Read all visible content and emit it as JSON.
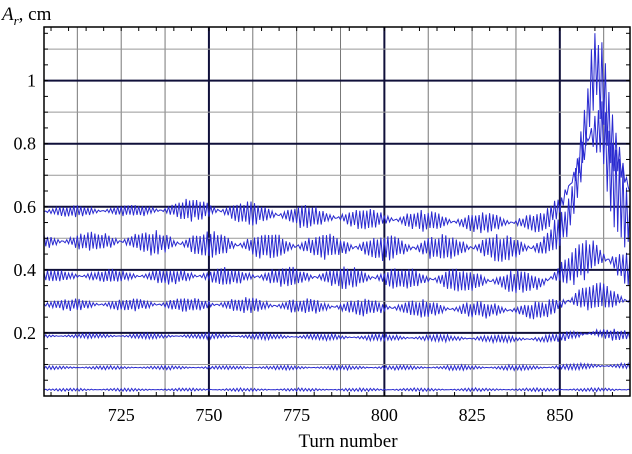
{
  "chart_data": {
    "type": "line",
    "xlabel": "Turn number",
    "ylabel_symbol": "A",
    "ylabel_subscript": "r",
    "ylabel_unit": ", cm",
    "xlim": [
      703,
      870
    ],
    "ylim": [
      0.0,
      1.17
    ],
    "x_ticks": [
      725,
      750,
      775,
      800,
      825,
      850
    ],
    "y_ticks": [
      0.2,
      0.4,
      0.6,
      0.8,
      1
    ],
    "x_tick_labels": [
      "725",
      "750",
      "775",
      "800",
      "825",
      "850"
    ],
    "y_tick_labels": [
      "0.2",
      "0.4",
      "0.6",
      "0.8",
      "1"
    ],
    "grid": true,
    "colors": {
      "series": "#2a2ad0",
      "grid": "#1a1a1a",
      "axis": "#000000"
    },
    "series": [
      {
        "values": [
          [
            703,
            0.585
          ],
          [
            750,
            0.59
          ],
          [
            775,
            0.57
          ],
          [
            800,
            0.56
          ],
          [
            825,
            0.55
          ],
          [
            845,
            0.55
          ],
          [
            850,
            0.6
          ],
          [
            855,
            0.72
          ],
          [
            858,
            0.9
          ],
          [
            860,
            1.05
          ],
          [
            862,
            1.0
          ],
          [
            865,
            0.8
          ],
          [
            870,
            0.65
          ]
        ],
        "amplitude": [
          [
            703,
            0.02
          ],
          [
            730,
            0.02
          ],
          [
            740,
            0.035
          ],
          [
            748,
            0.04
          ],
          [
            775,
            0.04
          ],
          [
            800,
            0.035
          ],
          [
            845,
            0.035
          ],
          [
            850,
            0.05
          ],
          [
            858,
            0.15
          ],
          [
            870,
            0.1
          ]
        ]
      },
      {
        "values": [
          [
            703,
            0.49
          ],
          [
            725,
            0.49
          ],
          [
            750,
            0.48
          ],
          [
            800,
            0.47
          ],
          [
            845,
            0.47
          ],
          [
            852,
            0.55
          ],
          [
            858,
            0.82
          ],
          [
            862,
            0.85
          ],
          [
            866,
            0.65
          ],
          [
            870,
            0.55
          ]
        ],
        "amplitude": [
          [
            703,
            0.03
          ],
          [
            740,
            0.045
          ],
          [
            800,
            0.045
          ],
          [
            845,
            0.045
          ],
          [
            852,
            0.06
          ],
          [
            858,
            0.2
          ],
          [
            870,
            0.12
          ]
        ]
      },
      {
        "values": [
          [
            703,
            0.38
          ],
          [
            750,
            0.38
          ],
          [
            800,
            0.375
          ],
          [
            845,
            0.36
          ],
          [
            852,
            0.4
          ],
          [
            860,
            0.45
          ],
          [
            870,
            0.4
          ]
        ],
        "amplitude": [
          [
            703,
            0.02
          ],
          [
            750,
            0.03
          ],
          [
            800,
            0.04
          ],
          [
            845,
            0.04
          ],
          [
            855,
            0.07
          ],
          [
            870,
            0.07
          ]
        ]
      },
      {
        "values": [
          [
            703,
            0.29
          ],
          [
            750,
            0.29
          ],
          [
            800,
            0.28
          ],
          [
            845,
            0.27
          ],
          [
            852,
            0.3
          ],
          [
            860,
            0.32
          ],
          [
            870,
            0.3
          ]
        ],
        "amplitude": [
          [
            703,
            0.02
          ],
          [
            750,
            0.025
          ],
          [
            800,
            0.03
          ],
          [
            845,
            0.03
          ],
          [
            855,
            0.05
          ],
          [
            870,
            0.05
          ]
        ]
      },
      {
        "values": [
          [
            703,
            0.19
          ],
          [
            750,
            0.19
          ],
          [
            800,
            0.185
          ],
          [
            845,
            0.18
          ],
          [
            852,
            0.19
          ],
          [
            860,
            0.2
          ],
          [
            870,
            0.19
          ]
        ],
        "amplitude": [
          [
            703,
            0.008
          ],
          [
            750,
            0.01
          ],
          [
            800,
            0.012
          ],
          [
            845,
            0.013
          ],
          [
            855,
            0.02
          ],
          [
            870,
            0.02
          ]
        ]
      },
      {
        "values": [
          [
            703,
            0.09
          ],
          [
            750,
            0.09
          ],
          [
            800,
            0.09
          ],
          [
            845,
            0.09
          ],
          [
            860,
            0.095
          ],
          [
            870,
            0.095
          ]
        ],
        "amplitude": [
          [
            703,
            0.006
          ],
          [
            800,
            0.008
          ],
          [
            850,
            0.01
          ],
          [
            870,
            0.012
          ]
        ]
      },
      {
        "values": [
          [
            703,
            0.02
          ],
          [
            750,
            0.02
          ],
          [
            800,
            0.02
          ],
          [
            870,
            0.02
          ]
        ],
        "amplitude": [
          [
            703,
            0.005
          ],
          [
            870,
            0.006
          ]
        ]
      }
    ]
  }
}
